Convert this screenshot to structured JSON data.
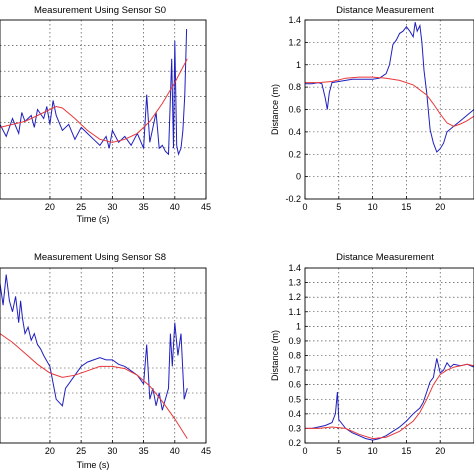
{
  "chart_data": [
    {
      "type": "line",
      "title": "Measurement Using Sensor S0",
      "xlabel": "Time (s)",
      "ylabel": "",
      "xlim": [
        12,
        45
      ],
      "ylim": [
        0.95,
        1.55
      ],
      "xticks": [
        20,
        25,
        30,
        35,
        40,
        45
      ],
      "yticks": [],
      "grid": true,
      "series": [
        {
          "color": "#1f1fbf",
          "x": [
            12,
            13,
            14,
            15,
            15.5,
            16,
            17,
            17.5,
            18,
            19,
            19.5,
            20,
            20.5,
            21,
            22,
            23,
            24,
            25,
            26,
            27,
            28,
            29,
            29.5,
            30,
            31,
            32,
            33,
            34,
            35,
            35.5,
            36,
            37,
            37.5,
            38,
            38.5,
            39,
            39.5,
            39.8,
            40,
            40.3,
            40.6,
            41,
            41.3,
            41.6,
            41.9
          ],
          "y": [
            1.2,
            1.16,
            1.22,
            1.17,
            1.24,
            1.21,
            1.23,
            1.19,
            1.25,
            1.22,
            1.26,
            1.2,
            1.28,
            1.23,
            1.18,
            1.2,
            1.15,
            1.19,
            1.17,
            1.15,
            1.13,
            1.16,
            1.12,
            1.18,
            1.14,
            1.16,
            1.13,
            1.17,
            1.12,
            1.3,
            1.14,
            1.24,
            1.12,
            1.13,
            1.11,
            1.1,
            1.42,
            1.12,
            1.48,
            1.13,
            1.1,
            1.12,
            1.18,
            1.3,
            1.52
          ]
        },
        {
          "color": "#e8383a",
          "x": [
            12,
            14,
            16,
            18,
            20,
            21,
            22,
            24,
            26,
            28,
            30,
            32,
            34,
            36,
            38,
            40,
            42
          ],
          "y": [
            1.19,
            1.2,
            1.21,
            1.23,
            1.25,
            1.26,
            1.255,
            1.22,
            1.18,
            1.15,
            1.14,
            1.15,
            1.17,
            1.21,
            1.27,
            1.34,
            1.42
          ]
        }
      ]
    },
    {
      "type": "line",
      "title": "Distance Measurement",
      "xlabel": "",
      "ylabel": "Distance (m)",
      "xlim": [
        0,
        25
      ],
      "ylim": [
        -0.2,
        1.4
      ],
      "xticks": [
        0,
        5,
        10,
        15,
        20
      ],
      "yticks": [
        -0.2,
        0,
        0.2,
        0.4,
        0.6,
        0.8,
        1,
        1.2,
        1.4
      ],
      "grid": true,
      "series": [
        {
          "color": "#1f1fbf",
          "x": [
            0,
            1,
            2,
            2.5,
            3,
            3.3,
            3.6,
            4,
            5,
            6,
            7,
            8,
            9,
            10,
            11,
            12,
            12.5,
            13,
            13.5,
            14,
            14.5,
            15,
            15.5,
            16,
            16.3,
            16.6,
            17,
            17.3,
            17.6,
            18,
            18.5,
            19,
            19.5,
            20,
            20.5,
            21,
            22,
            23,
            24,
            25
          ],
          "y": [
            0.83,
            0.83,
            0.84,
            0.83,
            0.7,
            0.6,
            0.75,
            0.84,
            0.85,
            0.86,
            0.87,
            0.87,
            0.87,
            0.87,
            0.88,
            0.92,
            1.0,
            1.18,
            1.22,
            1.28,
            1.3,
            1.34,
            1.3,
            1.25,
            1.38,
            1.3,
            1.35,
            1.2,
            0.95,
            0.75,
            0.42,
            0.3,
            0.22,
            0.25,
            0.3,
            0.4,
            0.45,
            0.5,
            0.55,
            0.6
          ]
        },
        {
          "color": "#e8383a",
          "x": [
            0,
            2,
            4,
            6,
            8,
            10,
            12,
            14,
            16,
            18,
            19,
            20,
            21,
            22,
            23,
            24,
            25
          ],
          "y": [
            0.84,
            0.84,
            0.85,
            0.88,
            0.89,
            0.89,
            0.88,
            0.86,
            0.82,
            0.73,
            0.65,
            0.56,
            0.48,
            0.45,
            0.47,
            0.5,
            0.54
          ]
        }
      ]
    },
    {
      "type": "line",
      "title": "Measurement Using Sensor S8",
      "xlabel": "Time (s)",
      "ylabel": "",
      "xlim": [
        12,
        45
      ],
      "ylim": [
        0.95,
        1.75
      ],
      "xticks": [
        20,
        25,
        30,
        35,
        40,
        45
      ],
      "yticks": [],
      "grid": true,
      "series": [
        {
          "color": "#1f1fbf",
          "x": [
            12,
            12.5,
            13,
            13.5,
            14,
            14.5,
            15,
            15.3,
            15.6,
            16,
            16.5,
            17,
            17.5,
            18,
            18.5,
            19,
            20,
            21,
            22,
            22.5,
            23,
            24,
            25,
            26,
            27,
            28,
            29,
            30,
            31,
            32,
            33,
            34,
            35,
            35.5,
            36,
            36.5,
            37,
            37.5,
            38,
            38.5,
            39,
            39.3,
            39.6,
            40,
            40.5,
            41,
            41.5,
            42
          ],
          "y": [
            1.68,
            1.58,
            1.72,
            1.6,
            1.55,
            1.62,
            1.5,
            1.6,
            1.52,
            1.45,
            1.48,
            1.42,
            1.45,
            1.4,
            1.38,
            1.35,
            1.3,
            1.15,
            1.12,
            1.2,
            1.22,
            1.26,
            1.3,
            1.32,
            1.33,
            1.34,
            1.33,
            1.33,
            1.31,
            1.3,
            1.28,
            1.26,
            1.22,
            1.4,
            1.15,
            1.2,
            1.12,
            1.18,
            1.1,
            1.15,
            1.2,
            1.45,
            1.3,
            1.5,
            1.35,
            1.45,
            1.15,
            1.2
          ]
        },
        {
          "color": "#e8383a",
          "x": [
            12,
            14,
            16,
            18,
            20,
            22,
            24,
            26,
            28,
            30,
            32,
            34,
            36,
            38,
            40,
            42
          ],
          "y": [
            1.45,
            1.41,
            1.36,
            1.31,
            1.27,
            1.25,
            1.26,
            1.28,
            1.3,
            1.3,
            1.29,
            1.26,
            1.21,
            1.14,
            1.06,
            0.97
          ]
        }
      ]
    },
    {
      "type": "line",
      "title": "Distance Measurement",
      "xlabel": "",
      "ylabel": "Distance (m)",
      "xlim": [
        0,
        25
      ],
      "ylim": [
        0.2,
        1.4
      ],
      "xticks": [
        0,
        5,
        10,
        15,
        20
      ],
      "yticks": [
        0.2,
        0.3,
        0.4,
        0.5,
        0.6,
        0.7,
        0.8,
        0.9,
        1,
        1.1,
        1.2,
        1.3,
        1.4
      ],
      "grid": true,
      "series": [
        {
          "color": "#1f1fbf",
          "x": [
            0,
            1,
            2,
            3,
            4,
            4.5,
            4.8,
            5,
            5.5,
            6,
            7,
            8,
            9,
            10,
            11,
            12,
            13,
            14,
            15,
            16,
            17,
            17.5,
            18,
            18.5,
            19,
            19.5,
            20,
            20.5,
            21,
            21.5,
            22,
            23,
            24,
            25
          ],
          "y": [
            0.3,
            0.3,
            0.31,
            0.32,
            0.34,
            0.4,
            0.55,
            0.36,
            0.33,
            0.3,
            0.27,
            0.25,
            0.23,
            0.22,
            0.23,
            0.25,
            0.28,
            0.31,
            0.35,
            0.4,
            0.44,
            0.48,
            0.55,
            0.62,
            0.65,
            0.78,
            0.68,
            0.7,
            0.75,
            0.72,
            0.74,
            0.73,
            0.74,
            0.72
          ]
        },
        {
          "color": "#e8383a",
          "x": [
            0,
            2,
            4,
            6,
            8,
            10,
            12,
            14,
            16,
            17,
            18,
            19,
            20,
            21,
            22,
            23,
            24,
            25
          ],
          "y": [
            0.3,
            0.3,
            0.31,
            0.3,
            0.26,
            0.23,
            0.24,
            0.28,
            0.35,
            0.41,
            0.5,
            0.6,
            0.67,
            0.7,
            0.72,
            0.73,
            0.74,
            0.73
          ]
        }
      ]
    }
  ]
}
